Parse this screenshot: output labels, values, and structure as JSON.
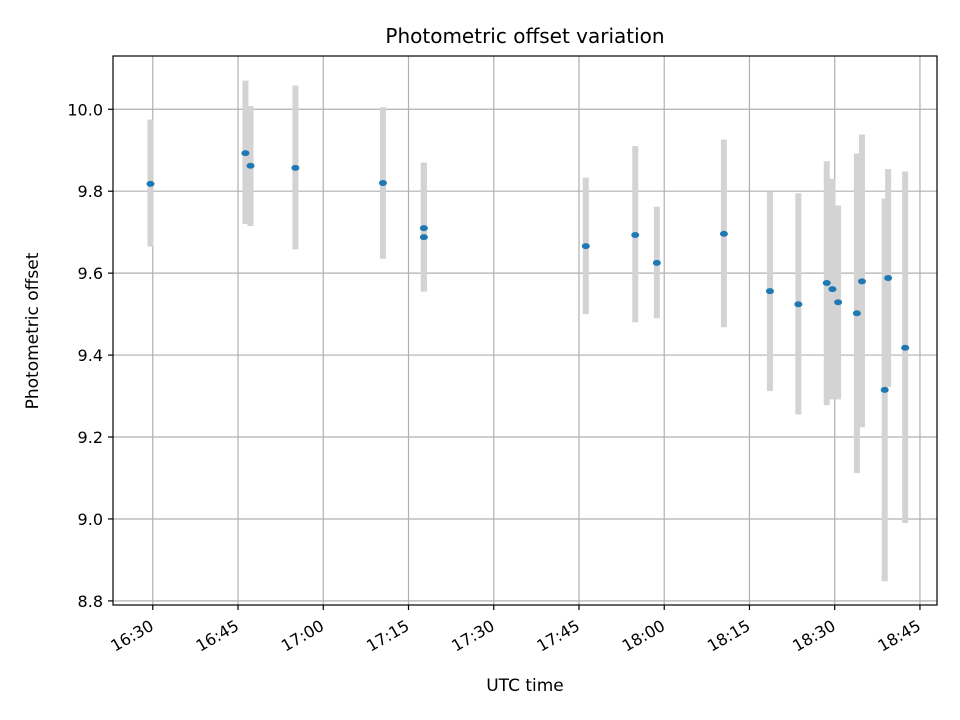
{
  "chart_data": {
    "type": "scatter",
    "title": "Photometric offset variation",
    "xlabel": "UTC time",
    "ylabel": "Photometric offset",
    "x_unit": "UTC time (HH:MM)",
    "xlim": [
      "16:23",
      "18:48"
    ],
    "ylim": [
      8.79,
      10.13
    ],
    "x_ticks": [
      "16:30",
      "16:45",
      "17:00",
      "17:15",
      "17:30",
      "17:45",
      "18:00",
      "18:15",
      "18:30",
      "18:45"
    ],
    "y_ticks": [
      "8.8",
      "9.0",
      "9.2",
      "9.4",
      "9.6",
      "9.8",
      "10.0"
    ],
    "grid": true,
    "marker_color": "#1f77b4",
    "errorbar_color": "#d3d3d3",
    "grid_color": "#b0b0b0",
    "points": [
      {
        "t": "16:29.6",
        "y": 9.818,
        "lo": 9.665,
        "hi": 9.975
      },
      {
        "t": "16:46.3",
        "y": 9.893,
        "lo": 9.72,
        "hi": 10.07
      },
      {
        "t": "16:47.2",
        "y": 9.862,
        "lo": 9.715,
        "hi": 10.008
      },
      {
        "t": "16:55.1",
        "y": 9.857,
        "lo": 9.658,
        "hi": 10.058
      },
      {
        "t": "17:10.5",
        "y": 9.82,
        "lo": 9.635,
        "hi": 10.005
      },
      {
        "t": "17:17.7",
        "y": 9.71,
        "lo": 9.555,
        "hi": 9.87
      },
      {
        "t": "17:17.7",
        "y": 9.688,
        "lo": 9.555,
        "hi": 9.87
      },
      {
        "t": "17:46.2",
        "y": 9.666,
        "lo": 9.5,
        "hi": 9.833
      },
      {
        "t": "17:54.9",
        "y": 9.693,
        "lo": 9.48,
        "hi": 9.91
      },
      {
        "t": "17:58.7",
        "y": 9.625,
        "lo": 9.49,
        "hi": 9.762
      },
      {
        "t": "18:10.5",
        "y": 9.696,
        "lo": 9.468,
        "hi": 9.926
      },
      {
        "t": "18:18.6",
        "y": 9.556,
        "lo": 9.312,
        "hi": 9.798
      },
      {
        "t": "18:23.6",
        "y": 9.524,
        "lo": 9.255,
        "hi": 9.795
      },
      {
        "t": "18:28.6",
        "y": 9.576,
        "lo": 9.278,
        "hi": 9.873
      },
      {
        "t": "18:29.6",
        "y": 9.561,
        "lo": 9.292,
        "hi": 9.83
      },
      {
        "t": "18:30.6",
        "y": 9.529,
        "lo": 9.292,
        "hi": 9.765
      },
      {
        "t": "18:33.9",
        "y": 9.502,
        "lo": 9.112,
        "hi": 9.892
      },
      {
        "t": "18:34.8",
        "y": 9.58,
        "lo": 9.224,
        "hi": 9.938
      },
      {
        "t": "18:38.8",
        "y": 9.315,
        "lo": 8.848,
        "hi": 9.782
      },
      {
        "t": "18:39.4",
        "y": 9.588,
        "lo": 9.322,
        "hi": 9.854
      },
      {
        "t": "18:42.4",
        "y": 9.418,
        "lo": 8.99,
        "hi": 9.848
      }
    ]
  }
}
